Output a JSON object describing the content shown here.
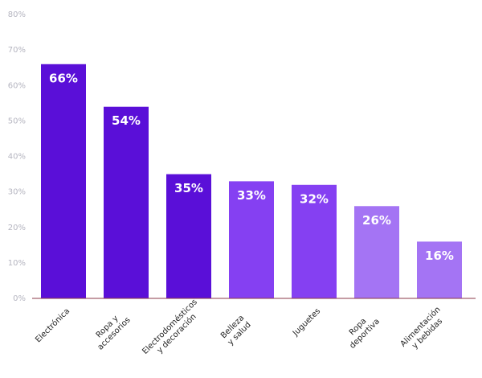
{
  "chart_data": {
    "type": "bar",
    "categories": [
      [
        "Electrónica"
      ],
      [
        "Ropa y",
        "accesorios"
      ],
      [
        "Electrodomésticos",
        "y decoración"
      ],
      [
        "Belleza",
        "y salud"
      ],
      [
        "Juguetes"
      ],
      [
        "Ropa",
        "deportiva"
      ],
      [
        "Alimentación",
        "y bebidas"
      ]
    ],
    "values": [
      66,
      54,
      35,
      33,
      32,
      26,
      16
    ],
    "value_labels": [
      "66%",
      "54%",
      "35%",
      "33%",
      "32%",
      "26%",
      "16%"
    ],
    "colors": [
      "#5a0fd8",
      "#5a0fd8",
      "#5a0fd8",
      "#8540f2",
      "#8540f2",
      "#a474f4",
      "#a474f4"
    ],
    "ylim": [
      0,
      80
    ],
    "yticks": [
      {
        "value": 0,
        "label": "0%"
      },
      {
        "value": 10,
        "label": "10%"
      },
      {
        "value": 20,
        "label": "20%"
      },
      {
        "value": 30,
        "label": "30%"
      },
      {
        "value": 40,
        "label": "40%"
      },
      {
        "value": 50,
        "label": "50%"
      },
      {
        "value": 60,
        "label": "60%"
      },
      {
        "value": 70,
        "label": "70%"
      },
      {
        "value": 80,
        "label": "80%"
      }
    ],
    "grid": false
  }
}
